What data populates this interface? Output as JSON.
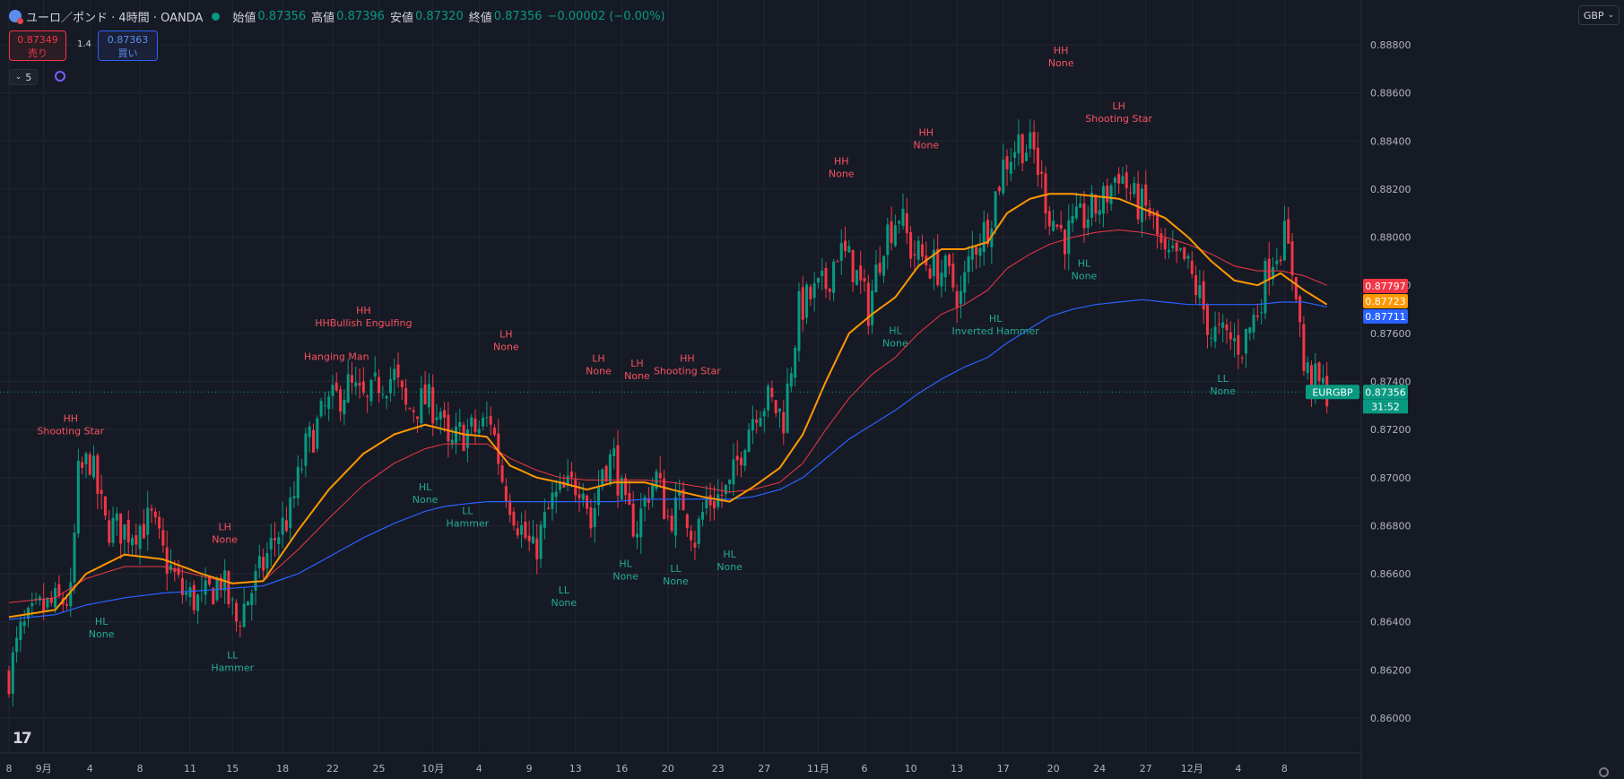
{
  "header": {
    "title": "ユーロ／ポンド · 4時間 · OANDA",
    "open_label": "始値",
    "open": "0.87356",
    "high_label": "高値",
    "high": "0.87396",
    "low_label": "安値",
    "low": "0.87320",
    "close_label": "終値",
    "close": "0.87356",
    "change": "−0.00002 (−0.00%)"
  },
  "trade": {
    "sell_price": "0.87349",
    "sell_label": "売り",
    "buy_price": "0.87363",
    "buy_label": "買い",
    "spread": "1.4"
  },
  "indicator_collapse": "5",
  "currency": "GBP",
  "colors": {
    "background": "#161a25",
    "up": "#089981",
    "down": "#f23645",
    "ma_fast": "#ff9800",
    "ma_mid": "#f23645",
    "ma_slow": "#2962ff",
    "label_high": "#f7525f",
    "label_low": "#22ab94"
  },
  "chart_data": {
    "type": "candlestick",
    "symbol": "EURGBP",
    "y_ticks": [
      "0.88800",
      "0.88600",
      "0.88400",
      "0.88200",
      "0.88000",
      "0.87800",
      "0.87600",
      "0.87400",
      "0.87200",
      "0.87000",
      "0.86800",
      "0.86600",
      "0.86400",
      "0.86200",
      "0.86000"
    ],
    "ylim": [
      0.8592,
      0.8892
    ],
    "x_tick_labels": [
      "8",
      "9月",
      "4",
      "8",
      "11",
      "15",
      "18",
      "22",
      "25",
      "10月",
      "4",
      "9",
      "13",
      "16",
      "20",
      "23",
      "27",
      "11月",
      "6",
      "10",
      "13",
      "17",
      "20",
      "24",
      "27",
      "12月",
      "4",
      "8"
    ],
    "x_tick_bars": [
      0,
      9,
      21,
      34,
      47,
      58,
      71,
      84,
      96,
      110,
      122,
      135,
      147,
      159,
      171,
      184,
      196,
      210,
      222,
      234,
      246,
      258,
      271,
      283,
      295,
      307,
      319,
      331
    ],
    "price_tags": [
      {
        "text": "0.87797",
        "value": 0.87797,
        "color": "#f23645"
      },
      {
        "text": "0.87723",
        "value": 0.87723,
        "color": "#ff9800"
      },
      {
        "text": "0.87711",
        "value": 0.87711,
        "color": "#2962ff"
      },
      {
        "text": "0.87356",
        "value": 0.87356,
        "color": "#089981"
      }
    ],
    "last_symbol": "EURGBP",
    "countdown": "31:52",
    "anchors": [
      [
        0,
        0.8618
      ],
      [
        3,
        0.8635
      ],
      [
        8,
        0.8645
      ],
      [
        16,
        0.865
      ],
      [
        18,
        0.87
      ],
      [
        21,
        0.8708
      ],
      [
        25,
        0.868
      ],
      [
        31,
        0.8678
      ],
      [
        37,
        0.8682
      ],
      [
        40,
        0.8668
      ],
      [
        45,
        0.8652
      ],
      [
        50,
        0.8648
      ],
      [
        55,
        0.8658
      ],
      [
        59,
        0.864
      ],
      [
        65,
        0.866
      ],
      [
        69,
        0.8675
      ],
      [
        73,
        0.8685
      ],
      [
        77,
        0.8712
      ],
      [
        82,
        0.8728
      ],
      [
        88,
        0.8738
      ],
      [
        93,
        0.873
      ],
      [
        96,
        0.874
      ],
      [
        100,
        0.8742
      ],
      [
        103,
        0.8728
      ],
      [
        108,
        0.8732
      ],
      [
        112,
        0.8728
      ],
      [
        114,
        0.871
      ],
      [
        117,
        0.8718
      ],
      [
        122,
        0.872
      ],
      [
        125,
        0.8725
      ],
      [
        128,
        0.87
      ],
      [
        132,
        0.8682
      ],
      [
        136,
        0.8668
      ],
      [
        141,
        0.869
      ],
      [
        145,
        0.8695
      ],
      [
        149,
        0.87
      ],
      [
        151,
        0.868
      ],
      [
        154,
        0.8705
      ],
      [
        157,
        0.8708
      ],
      [
        160,
        0.8685
      ],
      [
        163,
        0.868
      ],
      [
        166,
        0.8695
      ],
      [
        168,
        0.87
      ],
      [
        171,
        0.8683
      ],
      [
        175,
        0.869
      ],
      [
        178,
        0.8675
      ],
      [
        181,
        0.869
      ],
      [
        184,
        0.8692
      ],
      [
        187,
        0.8695
      ],
      [
        191,
        0.8718
      ],
      [
        194,
        0.873
      ],
      [
        197,
        0.8732
      ],
      [
        201,
        0.8725
      ],
      [
        205,
        0.877
      ],
      [
        208,
        0.8775
      ],
      [
        212,
        0.878
      ],
      [
        215,
        0.8795
      ],
      [
        219,
        0.8788
      ],
      [
        223,
        0.877
      ],
      [
        227,
        0.88
      ],
      [
        231,
        0.881
      ],
      [
        234,
        0.8795
      ],
      [
        238,
        0.879
      ],
      [
        243,
        0.8785
      ],
      [
        247,
        0.8775
      ],
      [
        250,
        0.8795
      ],
      [
        254,
        0.8805
      ],
      [
        258,
        0.883
      ],
      [
        262,
        0.884
      ],
      [
        266,
        0.8835
      ],
      [
        270,
        0.881
      ],
      [
        274,
        0.88
      ],
      [
        279,
        0.8808
      ],
      [
        284,
        0.8815
      ],
      [
        288,
        0.8828
      ],
      [
        292,
        0.8815
      ],
      [
        296,
        0.881
      ],
      [
        300,
        0.879
      ],
      [
        305,
        0.879
      ],
      [
        309,
        0.8775
      ],
      [
        312,
        0.876
      ],
      [
        316,
        0.8758
      ],
      [
        320,
        0.8755
      ],
      [
        324,
        0.877
      ],
      [
        327,
        0.879
      ],
      [
        331,
        0.88
      ],
      [
        334,
        0.878
      ],
      [
        336,
        0.8745
      ],
      [
        340,
        0.8738
      ],
      [
        342,
        0.8736
      ]
    ],
    "ma_fast": [
      [
        0,
        0.8642
      ],
      [
        12,
        0.8645
      ],
      [
        20,
        0.866
      ],
      [
        30,
        0.8668
      ],
      [
        40,
        0.8666
      ],
      [
        50,
        0.866
      ],
      [
        58,
        0.8656
      ],
      [
        66,
        0.8657
      ],
      [
        75,
        0.8678
      ],
      [
        83,
        0.8695
      ],
      [
        92,
        0.871
      ],
      [
        100,
        0.8718
      ],
      [
        108,
        0.8722
      ],
      [
        113,
        0.872
      ],
      [
        118,
        0.8718
      ],
      [
        124,
        0.8717
      ],
      [
        130,
        0.8705
      ],
      [
        137,
        0.87
      ],
      [
        143,
        0.8698
      ],
      [
        150,
        0.8695
      ],
      [
        157,
        0.8698
      ],
      [
        165,
        0.8698
      ],
      [
        172,
        0.8695
      ],
      [
        180,
        0.8692
      ],
      [
        187,
        0.869
      ],
      [
        193,
        0.8696
      ],
      [
        200,
        0.8704
      ],
      [
        206,
        0.8718
      ],
      [
        212,
        0.874
      ],
      [
        218,
        0.876
      ],
      [
        224,
        0.8768
      ],
      [
        230,
        0.8775
      ],
      [
        236,
        0.8788
      ],
      [
        242,
        0.8795
      ],
      [
        248,
        0.8795
      ],
      [
        254,
        0.8798
      ],
      [
        259,
        0.881
      ],
      [
        265,
        0.8816
      ],
      [
        270,
        0.8818
      ],
      [
        276,
        0.8818
      ],
      [
        282,
        0.8817
      ],
      [
        288,
        0.8816
      ],
      [
        294,
        0.8812
      ],
      [
        300,
        0.8808
      ],
      [
        306,
        0.88
      ],
      [
        312,
        0.879
      ],
      [
        318,
        0.8782
      ],
      [
        324,
        0.878
      ],
      [
        330,
        0.8785
      ],
      [
        336,
        0.8778
      ],
      [
        342,
        0.8772
      ]
    ],
    "ma_mid": [
      [
        0,
        0.8648
      ],
      [
        12,
        0.865
      ],
      [
        20,
        0.8658
      ],
      [
        30,
        0.8663
      ],
      [
        40,
        0.8663
      ],
      [
        50,
        0.8659
      ],
      [
        58,
        0.8656
      ],
      [
        66,
        0.8657
      ],
      [
        75,
        0.867
      ],
      [
        83,
        0.8683
      ],
      [
        92,
        0.8697
      ],
      [
        100,
        0.8706
      ],
      [
        108,
        0.8712
      ],
      [
        113,
        0.8714
      ],
      [
        118,
        0.8714
      ],
      [
        124,
        0.8714
      ],
      [
        130,
        0.8708
      ],
      [
        137,
        0.8703
      ],
      [
        143,
        0.87
      ],
      [
        150,
        0.8699
      ],
      [
        157,
        0.8699
      ],
      [
        165,
        0.8699
      ],
      [
        172,
        0.8698
      ],
      [
        180,
        0.8696
      ],
      [
        187,
        0.8694
      ],
      [
        193,
        0.8695
      ],
      [
        200,
        0.8698
      ],
      [
        206,
        0.8706
      ],
      [
        212,
        0.872
      ],
      [
        218,
        0.8733
      ],
      [
        224,
        0.8743
      ],
      [
        230,
        0.875
      ],
      [
        236,
        0.876
      ],
      [
        242,
        0.8768
      ],
      [
        248,
        0.8772
      ],
      [
        254,
        0.8778
      ],
      [
        259,
        0.8787
      ],
      [
        265,
        0.8793
      ],
      [
        270,
        0.8797
      ],
      [
        276,
        0.88
      ],
      [
        282,
        0.8802
      ],
      [
        288,
        0.8803
      ],
      [
        294,
        0.8802
      ],
      [
        300,
        0.88
      ],
      [
        306,
        0.8797
      ],
      [
        312,
        0.8793
      ],
      [
        318,
        0.8788
      ],
      [
        324,
        0.8786
      ],
      [
        330,
        0.8786
      ],
      [
        336,
        0.8784
      ],
      [
        342,
        0.878
      ]
    ],
    "ma_slow": [
      [
        0,
        0.8641
      ],
      [
        12,
        0.8643
      ],
      [
        20,
        0.8647
      ],
      [
        30,
        0.865
      ],
      [
        40,
        0.8652
      ],
      [
        50,
        0.8653
      ],
      [
        58,
        0.8654
      ],
      [
        66,
        0.8655
      ],
      [
        75,
        0.866
      ],
      [
        83,
        0.8667
      ],
      [
        92,
        0.8675
      ],
      [
        100,
        0.8681
      ],
      [
        108,
        0.8686
      ],
      [
        113,
        0.8688
      ],
      [
        118,
        0.8689
      ],
      [
        124,
        0.869
      ],
      [
        130,
        0.869
      ],
      [
        137,
        0.869
      ],
      [
        143,
        0.869
      ],
      [
        150,
        0.869
      ],
      [
        157,
        0.869
      ],
      [
        165,
        0.8691
      ],
      [
        172,
        0.8691
      ],
      [
        180,
        0.8691
      ],
      [
        187,
        0.8691
      ],
      [
        193,
        0.8692
      ],
      [
        200,
        0.8695
      ],
      [
        206,
        0.87
      ],
      [
        212,
        0.8708
      ],
      [
        218,
        0.8716
      ],
      [
        224,
        0.8722
      ],
      [
        230,
        0.8728
      ],
      [
        236,
        0.8735
      ],
      [
        242,
        0.8741
      ],
      [
        248,
        0.8746
      ],
      [
        254,
        0.875
      ],
      [
        259,
        0.8756
      ],
      [
        265,
        0.8762
      ],
      [
        270,
        0.8767
      ],
      [
        276,
        0.877
      ],
      [
        282,
        0.8772
      ],
      [
        288,
        0.8773
      ],
      [
        294,
        0.8774
      ],
      [
        300,
        0.8773
      ],
      [
        306,
        0.8772
      ],
      [
        312,
        0.8772
      ],
      [
        318,
        0.8772
      ],
      [
        324,
        0.8772
      ],
      [
        330,
        0.8773
      ],
      [
        336,
        0.8773
      ],
      [
        342,
        0.8771
      ]
    ],
    "annotations": [
      {
        "bar": 16,
        "kind": "high",
        "price": 0.8715,
        "lines": [
          "HH",
          "Shooting Star"
        ]
      },
      {
        "bar": 24,
        "kind": "low",
        "price": 0.8644,
        "lines": [
          "HL",
          "None"
        ]
      },
      {
        "bar": 56,
        "kind": "high",
        "price": 0.867,
        "lines": [
          "LH",
          "None"
        ]
      },
      {
        "bar": 58,
        "kind": "low",
        "price": 0.863,
        "lines": [
          "LL",
          "Hammer"
        ]
      },
      {
        "bar": 85,
        "kind": "high",
        "price": 0.8746,
        "lines": [
          "Hanging Man"
        ]
      },
      {
        "bar": 92,
        "kind": "high",
        "price": 0.876,
        "lines": [
          "HH",
          "HHBullish Engulfing"
        ]
      },
      {
        "bar": 108,
        "kind": "low",
        "price": 0.87,
        "lines": [
          "HL",
          "None"
        ]
      },
      {
        "bar": 119,
        "kind": "low",
        "price": 0.869,
        "lines": [
          "LL",
          "Hammer"
        ]
      },
      {
        "bar": 129,
        "kind": "high",
        "price": 0.875,
        "lines": [
          "LH",
          "None"
        ]
      },
      {
        "bar": 144,
        "kind": "low",
        "price": 0.8657,
        "lines": [
          "LL",
          "None"
        ]
      },
      {
        "bar": 153,
        "kind": "high",
        "price": 0.874,
        "lines": [
          "LH",
          "None"
        ]
      },
      {
        "bar": 160,
        "kind": "low",
        "price": 0.8668,
        "lines": [
          "HL",
          "None"
        ]
      },
      {
        "bar": 163,
        "kind": "high",
        "price": 0.8738,
        "lines": [
          "LH",
          "None"
        ]
      },
      {
        "bar": 173,
        "kind": "low",
        "price": 0.8666,
        "lines": [
          "LL",
          "None"
        ]
      },
      {
        "bar": 176,
        "kind": "high",
        "price": 0.874,
        "lines": [
          "HH",
          "Shooting Star"
        ]
      },
      {
        "bar": 187,
        "kind": "low",
        "price": 0.8672,
        "lines": [
          "HL",
          "None"
        ]
      },
      {
        "bar": 216,
        "kind": "high",
        "price": 0.8822,
        "lines": [
          "HH",
          "None"
        ]
      },
      {
        "bar": 230,
        "kind": "low",
        "price": 0.8765,
        "lines": [
          "HL",
          "None"
        ]
      },
      {
        "bar": 238,
        "kind": "high",
        "price": 0.8834,
        "lines": [
          "HH",
          "None"
        ]
      },
      {
        "bar": 256,
        "kind": "low",
        "price": 0.877,
        "lines": [
          "HL",
          "Inverted Hammer"
        ]
      },
      {
        "bar": 273,
        "kind": "high",
        "price": 0.8868,
        "lines": [
          "HH",
          "None"
        ]
      },
      {
        "bar": 279,
        "kind": "low",
        "price": 0.8793,
        "lines": [
          "HL",
          "None"
        ]
      },
      {
        "bar": 288,
        "kind": "high",
        "price": 0.8845,
        "lines": [
          "LH",
          "Shooting Star"
        ]
      },
      {
        "bar": 315,
        "kind": "low",
        "price": 0.8745,
        "lines": [
          "LL",
          "None"
        ]
      }
    ]
  }
}
